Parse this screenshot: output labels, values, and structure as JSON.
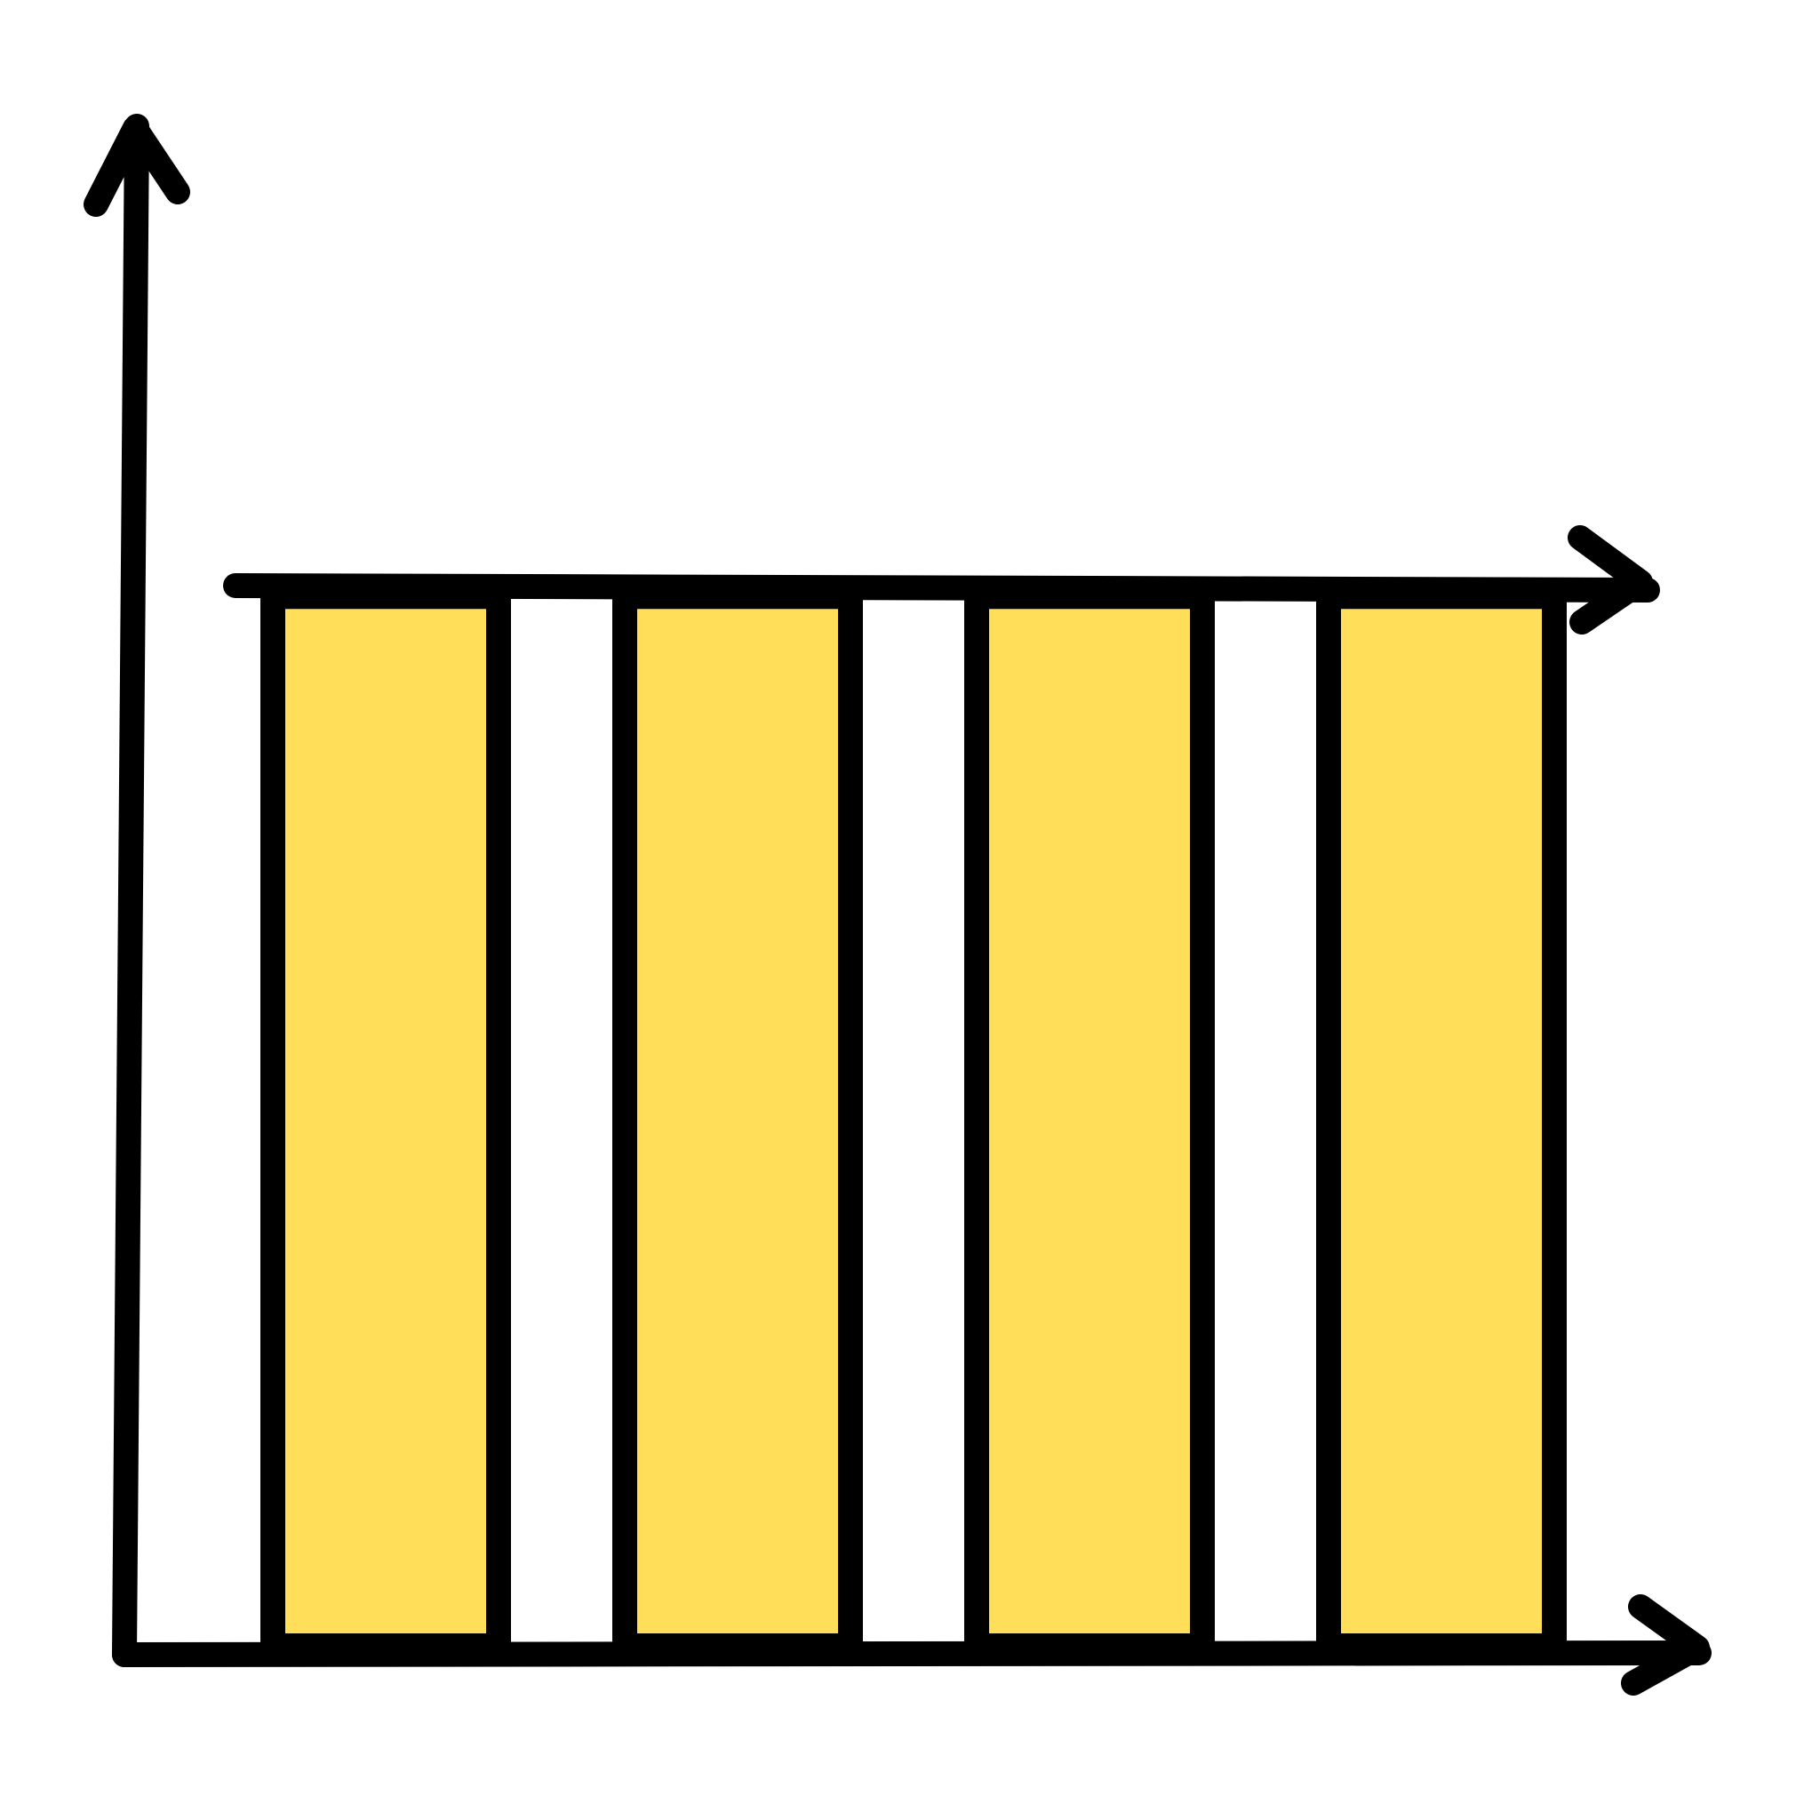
{
  "chart_data": {
    "type": "bar",
    "title": "",
    "xlabel": "",
    "ylabel": "",
    "categories": [
      "",
      "",
      "",
      ""
    ],
    "values": [
      1,
      1,
      1,
      1
    ],
    "ylim": [
      0,
      1.45
    ],
    "grid": false,
    "legend": "none",
    "trend": "increasing",
    "bar_color": "#FFDE59",
    "outline_color": "#000000",
    "background_color": "#FFFFFF"
  }
}
